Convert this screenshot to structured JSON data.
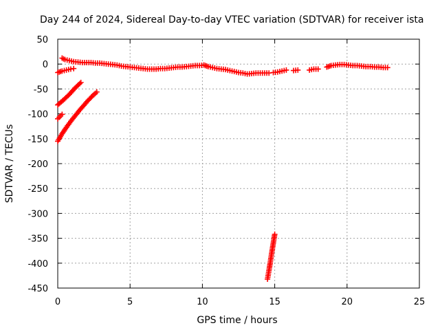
{
  "chart_data": {
    "type": "scatter",
    "title": "Day 244 of 2024, Sidereal Day-to-day VTEC variation (SDTVAR) for receiver ista",
    "xlabel": "GPS time / hours",
    "ylabel": "SDTVAR / TECUs",
    "xlim": [
      0,
      25
    ],
    "ylim": [
      -450,
      50
    ],
    "xticks": [
      0,
      5,
      10,
      15,
      20,
      25
    ],
    "yticks": [
      50,
      0,
      -50,
      -100,
      -150,
      -200,
      -250,
      -300,
      -350,
      -400,
      -450
    ],
    "grid": true,
    "marker": "plus",
    "series_color": "#ff0000",
    "series": [
      {
        "points": [
          [
            0.3,
            12
          ],
          [
            0.5,
            9
          ],
          [
            0.8,
            7
          ],
          [
            1.1,
            5
          ],
          [
            1.4,
            4
          ],
          [
            1.7,
            3
          ],
          [
            2.0,
            3
          ],
          [
            2.3,
            3
          ],
          [
            2.6,
            2
          ],
          [
            2.9,
            2
          ],
          [
            3.2,
            1
          ],
          [
            3.5,
            0
          ],
          [
            3.8,
            -1
          ],
          [
            4.1,
            -2
          ],
          [
            4.4,
            -4
          ],
          [
            4.7,
            -5
          ],
          [
            5.0,
            -6
          ],
          [
            5.3,
            -7
          ],
          [
            5.6,
            -8
          ],
          [
            5.9,
            -9
          ],
          [
            6.2,
            -10
          ],
          [
            6.5,
            -10
          ],
          [
            6.8,
            -10
          ],
          [
            7.1,
            -9
          ],
          [
            7.4,
            -9
          ],
          [
            7.7,
            -8
          ],
          [
            8.0,
            -7
          ],
          [
            8.3,
            -6
          ],
          [
            8.6,
            -6
          ],
          [
            8.9,
            -5
          ],
          [
            9.2,
            -4
          ],
          [
            9.5,
            -3
          ],
          [
            9.8,
            -3
          ],
          [
            10.1,
            -2
          ],
          [
            10.4,
            -5
          ],
          [
            10.7,
            -7
          ],
          [
            11.0,
            -9
          ],
          [
            11.3,
            -10
          ],
          [
            11.6,
            -11
          ],
          [
            11.9,
            -13
          ],
          [
            12.2,
            -15
          ],
          [
            12.5,
            -17
          ],
          [
            12.8,
            -18
          ],
          [
            13.1,
            -20
          ],
          [
            13.4,
            -19
          ],
          [
            13.7,
            -18
          ],
          [
            14.0,
            -18
          ],
          [
            14.3,
            -18
          ],
          [
            14.6,
            -18
          ]
        ]
      },
      {
        "points": [
          [
            14.9,
            -17
          ],
          [
            15.2,
            -16
          ],
          [
            15.5,
            -14
          ],
          [
            15.8,
            -12
          ]
        ]
      },
      {
        "points": [
          [
            16.3,
            -13
          ],
          [
            16.6,
            -12
          ]
        ]
      },
      {
        "points": [
          [
            17.4,
            -12
          ],
          [
            17.7,
            -10
          ],
          [
            18.0,
            -10
          ]
        ]
      },
      {
        "points": [
          [
            18.6,
            -6
          ],
          [
            18.9,
            -3
          ],
          [
            19.2,
            -2
          ],
          [
            19.5,
            -1
          ],
          [
            19.8,
            -1
          ],
          [
            20.1,
            -2
          ],
          [
            20.4,
            -3
          ],
          [
            20.7,
            -3
          ],
          [
            21.0,
            -4
          ],
          [
            21.3,
            -5
          ],
          [
            21.6,
            -5
          ],
          [
            21.9,
            -6
          ],
          [
            22.2,
            -6
          ],
          [
            22.5,
            -7
          ],
          [
            22.8,
            -7
          ]
        ]
      },
      {
        "points": [
          [
            0.0,
            -17
          ],
          [
            0.3,
            -14
          ],
          [
            0.6,
            -12
          ],
          [
            0.9,
            -10
          ],
          [
            1.1,
            -9
          ]
        ]
      },
      {
        "points": [
          [
            0.0,
            -82
          ],
          [
            0.4,
            -72
          ],
          [
            0.8,
            -61
          ],
          [
            1.2,
            -48
          ],
          [
            1.6,
            -37
          ]
        ]
      },
      {
        "points": [
          [
            0.0,
            -110
          ],
          [
            0.2,
            -104
          ],
          [
            0.3,
            -101
          ]
        ]
      },
      {
        "points": [
          [
            0.0,
            -155
          ],
          [
            0.3,
            -140
          ],
          [
            0.6,
            -127
          ],
          [
            0.9,
            -115
          ],
          [
            1.2,
            -104
          ],
          [
            1.5,
            -93
          ],
          [
            1.8,
            -83
          ],
          [
            2.1,
            -73
          ],
          [
            2.4,
            -64
          ],
          [
            2.7,
            -56
          ]
        ]
      },
      {
        "points": [
          [
            14.5,
            -432
          ],
          [
            14.6,
            -415
          ],
          [
            14.7,
            -397
          ],
          [
            14.8,
            -378
          ],
          [
            14.9,
            -360
          ],
          [
            15.0,
            -342
          ]
        ]
      }
    ]
  }
}
